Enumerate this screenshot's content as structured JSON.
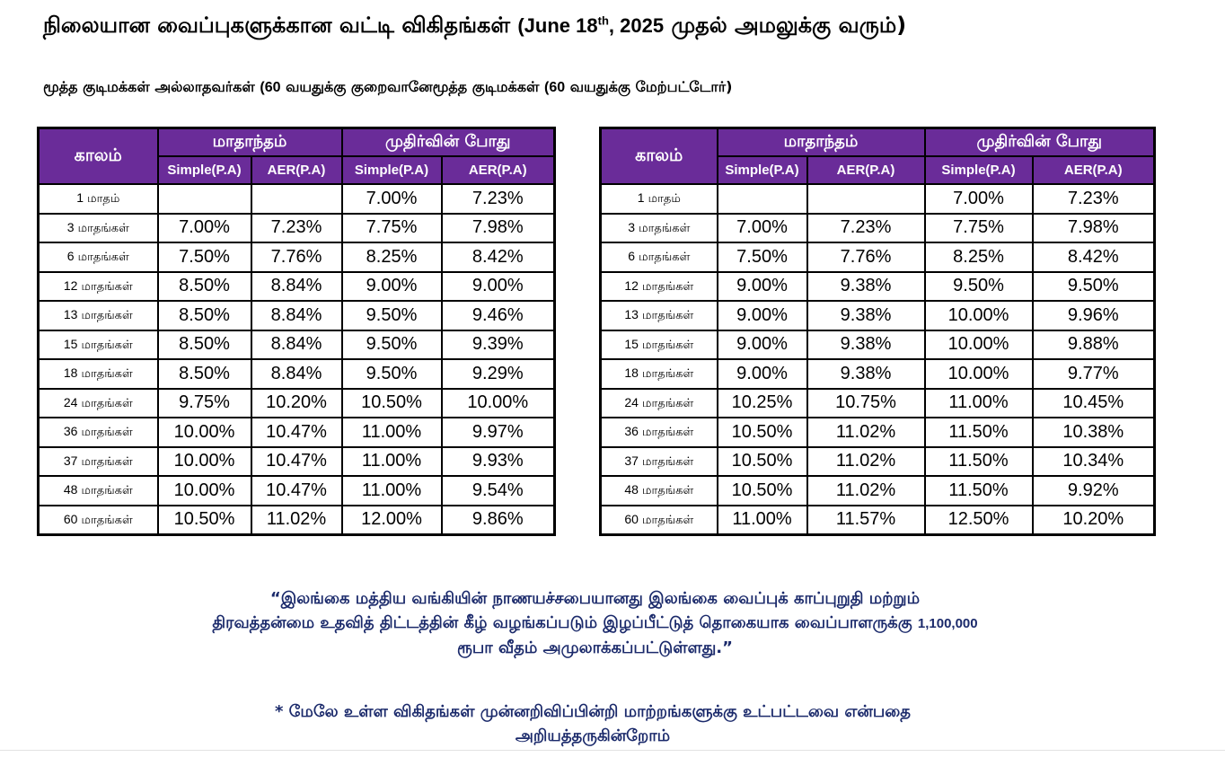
{
  "page": {
    "title": "நிலையான வைப்புகளுக்கான வட்டி விகிதங்கள்",
    "title_date_open": "(June 18",
    "title_date_sup": "th",
    "title_date_close": ", 2025",
    "title_suffix": "முதல் அமலுக்கு வரும்)",
    "subtitle_left_label": "மூத்த குடிமக்கள் அல்லாதவர்கள்",
    "subtitle_left_num": "(60",
    "subtitle_left_tail": "வயதுக்கு குறைவானே",
    "subtitle_right_label": "மூத்த குடிமக்கள்",
    "subtitle_right_num": "(60",
    "subtitle_right_tail": "வயதுக்கு மேற்பட்டோர்)"
  },
  "headers": {
    "period": "காலம்",
    "monthly": "மாதாந்தம்",
    "maturity": "முதிர்வின் போது",
    "simple": "Simple(P.A)",
    "aer": "AER(P.A)"
  },
  "tables": {
    "non_senior": {
      "rows": [
        {
          "num": "1",
          "unit": "மாதம்",
          "m_simple": "",
          "m_aer": "",
          "t_simple": "7.00%",
          "t_aer": "7.23%"
        },
        {
          "num": "3",
          "unit": "மாதங்கள்",
          "m_simple": "7.00%",
          "m_aer": "7.23%",
          "t_simple": "7.75%",
          "t_aer": "7.98%"
        },
        {
          "num": "6",
          "unit": "மாதங்கள்",
          "m_simple": "7.50%",
          "m_aer": "7.76%",
          "t_simple": "8.25%",
          "t_aer": "8.42%"
        },
        {
          "num": "12",
          "unit": "மாதங்கள்",
          "m_simple": "8.50%",
          "m_aer": "8.84%",
          "t_simple": "9.00%",
          "t_aer": "9.00%"
        },
        {
          "num": "13",
          "unit": "மாதங்கள்",
          "m_simple": "8.50%",
          "m_aer": "8.84%",
          "t_simple": "9.50%",
          "t_aer": "9.46%"
        },
        {
          "num": "15",
          "unit": "மாதங்கள்",
          "m_simple": "8.50%",
          "m_aer": "8.84%",
          "t_simple": "9.50%",
          "t_aer": "9.39%"
        },
        {
          "num": "18",
          "unit": "மாதங்கள்",
          "m_simple": "8.50%",
          "m_aer": "8.84%",
          "t_simple": "9.50%",
          "t_aer": "9.29%"
        },
        {
          "num": "24",
          "unit": "மாதங்கள்",
          "m_simple": "9.75%",
          "m_aer": "10.20%",
          "t_simple": "10.50%",
          "t_aer": "10.00%"
        },
        {
          "num": "36",
          "unit": "மாதங்கள்",
          "m_simple": "10.00%",
          "m_aer": "10.47%",
          "t_simple": "11.00%",
          "t_aer": "9.97%"
        },
        {
          "num": "37",
          "unit": "மாதங்கள்",
          "m_simple": "10.00%",
          "m_aer": "10.47%",
          "t_simple": "11.00%",
          "t_aer": "9.93%"
        },
        {
          "num": "48",
          "unit": "மாதங்கள்",
          "m_simple": "10.00%",
          "m_aer": "10.47%",
          "t_simple": "11.00%",
          "t_aer": "9.54%"
        },
        {
          "num": "60",
          "unit": "மாதங்கள்",
          "m_simple": "10.50%",
          "m_aer": "11.02%",
          "t_simple": "12.00%",
          "t_aer": "9.86%"
        }
      ]
    },
    "senior": {
      "rows": [
        {
          "num": "1",
          "unit": "மாதம்",
          "m_simple": "",
          "m_aer": "",
          "t_simple": "7.00%",
          "t_aer": "7.23%"
        },
        {
          "num": "3",
          "unit": "மாதங்கள்",
          "m_simple": "7.00%",
          "m_aer": "7.23%",
          "t_simple": "7.75%",
          "t_aer": "7.98%"
        },
        {
          "num": "6",
          "unit": "மாதங்கள்",
          "m_simple": "7.50%",
          "m_aer": "7.76%",
          "t_simple": "8.25%",
          "t_aer": "8.42%"
        },
        {
          "num": "12",
          "unit": "மாதங்கள்",
          "m_simple": "9.00%",
          "m_aer": "9.38%",
          "t_simple": "9.50%",
          "t_aer": "9.50%"
        },
        {
          "num": "13",
          "unit": "மாதங்கள்",
          "m_simple": "9.00%",
          "m_aer": "9.38%",
          "t_simple": "10.00%",
          "t_aer": "9.96%"
        },
        {
          "num": "15",
          "unit": "மாதங்கள்",
          "m_simple": "9.00%",
          "m_aer": "9.38%",
          "t_simple": "10.00%",
          "t_aer": "9.88%"
        },
        {
          "num": "18",
          "unit": "மாதங்கள்",
          "m_simple": "9.00%",
          "m_aer": "9.38%",
          "t_simple": "10.00%",
          "t_aer": "9.77%"
        },
        {
          "num": "24",
          "unit": "மாதங்கள்",
          "m_simple": "10.25%",
          "m_aer": "10.75%",
          "t_simple": "11.00%",
          "t_aer": "10.45%"
        },
        {
          "num": "36",
          "unit": "மாதங்கள்",
          "m_simple": "10.50%",
          "m_aer": "11.02%",
          "t_simple": "11.50%",
          "t_aer": "10.38%"
        },
        {
          "num": "37",
          "unit": "மாதங்கள்",
          "m_simple": "10.50%",
          "m_aer": "11.02%",
          "t_simple": "11.50%",
          "t_aer": "10.34%"
        },
        {
          "num": "48",
          "unit": "மாதங்கள்",
          "m_simple": "10.50%",
          "m_aer": "11.02%",
          "t_simple": "11.50%",
          "t_aer": "9.92%"
        },
        {
          "num": "60",
          "unit": "மாதங்கள்",
          "m_simple": "11.00%",
          "m_aer": "11.57%",
          "t_simple": "12.50%",
          "t_aer": "10.20%"
        }
      ]
    }
  },
  "notice": {
    "line1": "“இலங்கை மத்திய வங்கியின் நாணயச்சபையானது இலங்கை வைப்புக் காப்புறுதி மற்றும்",
    "line2_text": "திரவத்தன்மை உதவித் திட்டத்தின் கீழ் வழங்கப்படும் இழப்பீட்டுத் தொகையாக வைப்பாளருக்கு",
    "line2_amount": "1,100,000",
    "line3": "ரூபா வீதம் அமுலாக்கப்பட்டுள்ளது.”"
  },
  "disclaimer": {
    "line1": "* மேலே உள்ள விகிதங்கள் முன்னறிவிப்பின்றி மாற்றங்களுக்கு உட்பட்டவை என்பதை",
    "line2": "அறியத்தருகின்றோம்"
  },
  "colors": {
    "header_bg": "#6a2c99",
    "notice_text": "#1b2a6b"
  }
}
